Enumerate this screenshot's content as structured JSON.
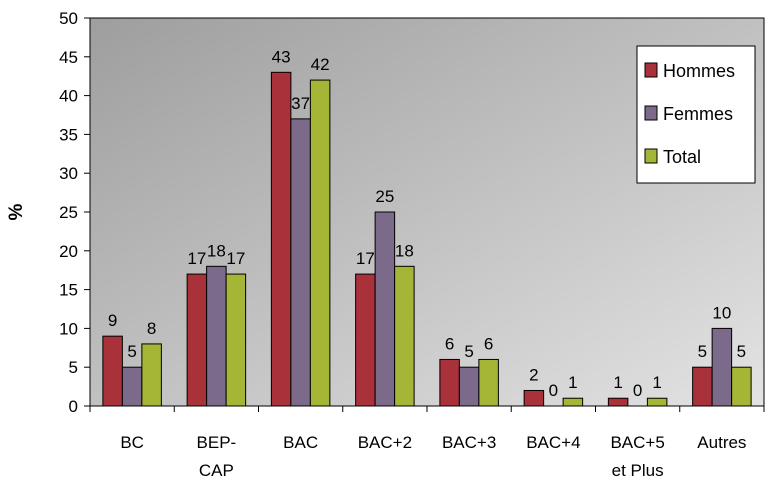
{
  "chart_data": {
    "type": "bar",
    "title": "",
    "xlabel": "",
    "ylabel": "%",
    "ylim": [
      0,
      50
    ],
    "yticks": [
      0,
      5,
      10,
      15,
      20,
      25,
      30,
      35,
      40,
      45,
      50
    ],
    "grid": false,
    "legend_position": "top-right",
    "categories": [
      [
        "BC"
      ],
      [
        "BEP-",
        "CAP"
      ],
      [
        "BAC"
      ],
      [
        "BAC+2"
      ],
      [
        "BAC+3"
      ],
      [
        "BAC+4"
      ],
      [
        "BAC+5",
        "et Plus"
      ],
      [
        "Autres"
      ]
    ],
    "series": [
      {
        "name": "Hommes",
        "color": "#a8313a",
        "values": [
          9,
          17,
          43,
          17,
          6,
          2,
          1,
          5
        ]
      },
      {
        "name": "Femmes",
        "color": "#7b6a8a",
        "values": [
          5,
          18,
          37,
          25,
          5,
          0,
          0,
          10
        ]
      },
      {
        "name": "Total",
        "color": "#a5b536",
        "values": [
          8,
          17,
          42,
          18,
          6,
          1,
          1,
          5
        ]
      }
    ],
    "plot_background": "#bfbfbf"
  }
}
